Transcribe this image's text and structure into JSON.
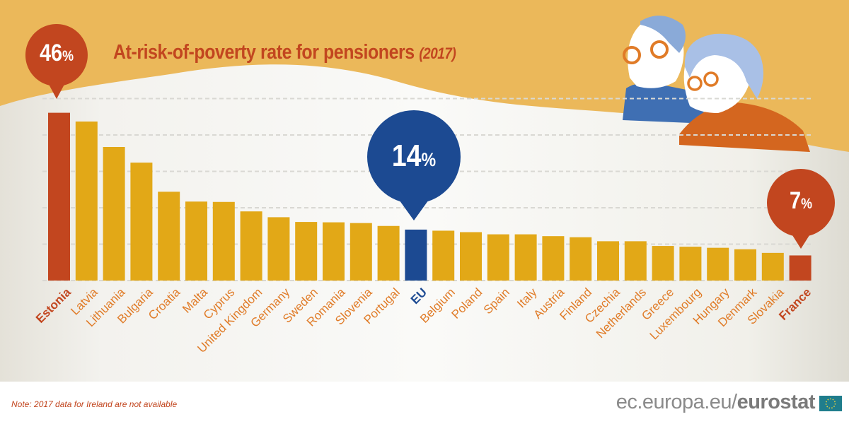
{
  "title": "At-risk-of-poverty rate for pensioners",
  "title_year": "(2017)",
  "callouts": {
    "estonia": {
      "value": "46",
      "unit": "%"
    },
    "eu": {
      "value": "14",
      "unit": "%"
    },
    "france": {
      "value": "7",
      "unit": "%"
    }
  },
  "note": "Note: 2017 data for Ireland are not available",
  "logo": {
    "domain": "ec.europa.eu/",
    "brand": "eurostat"
  },
  "colors": {
    "bar": "#e2a817",
    "highlight_red": "#c2461f",
    "eu_blue": "#1c4a92",
    "label": "#e07b27",
    "background_band": "#ebb85a"
  },
  "chart_data": {
    "type": "bar",
    "title": "At-risk-of-poverty rate for pensioners (2017)",
    "unit": "%",
    "ylim": [
      0,
      50
    ],
    "grid": true,
    "categories": [
      "Estonia",
      "Latvia",
      "Lithuania",
      "Bulgaria",
      "Croatia",
      "Malta",
      "Cyprus",
      "United Kingdom",
      "Germany",
      "Sweden",
      "Romania",
      "Slovenia",
      "Portugal",
      "EU",
      "Belgium",
      "Poland",
      "Spain",
      "Italy",
      "Austria",
      "Finland",
      "Czechia",
      "Netherlands",
      "Greece",
      "Luxembourg",
      "Hungary",
      "Denmark",
      "Slovakia",
      "France"
    ],
    "values": [
      46.1,
      43.7,
      36.7,
      32.4,
      24.4,
      21.7,
      21.6,
      19.0,
      17.4,
      16.1,
      16.0,
      15.8,
      15.0,
      14.0,
      13.7,
      13.3,
      12.7,
      12.7,
      12.2,
      11.9,
      10.8,
      10.8,
      9.5,
      9.3,
      9.0,
      8.6,
      7.6,
      6.9
    ],
    "highlight": {
      "Estonia": "red",
      "EU": "blue",
      "France": "red"
    }
  }
}
